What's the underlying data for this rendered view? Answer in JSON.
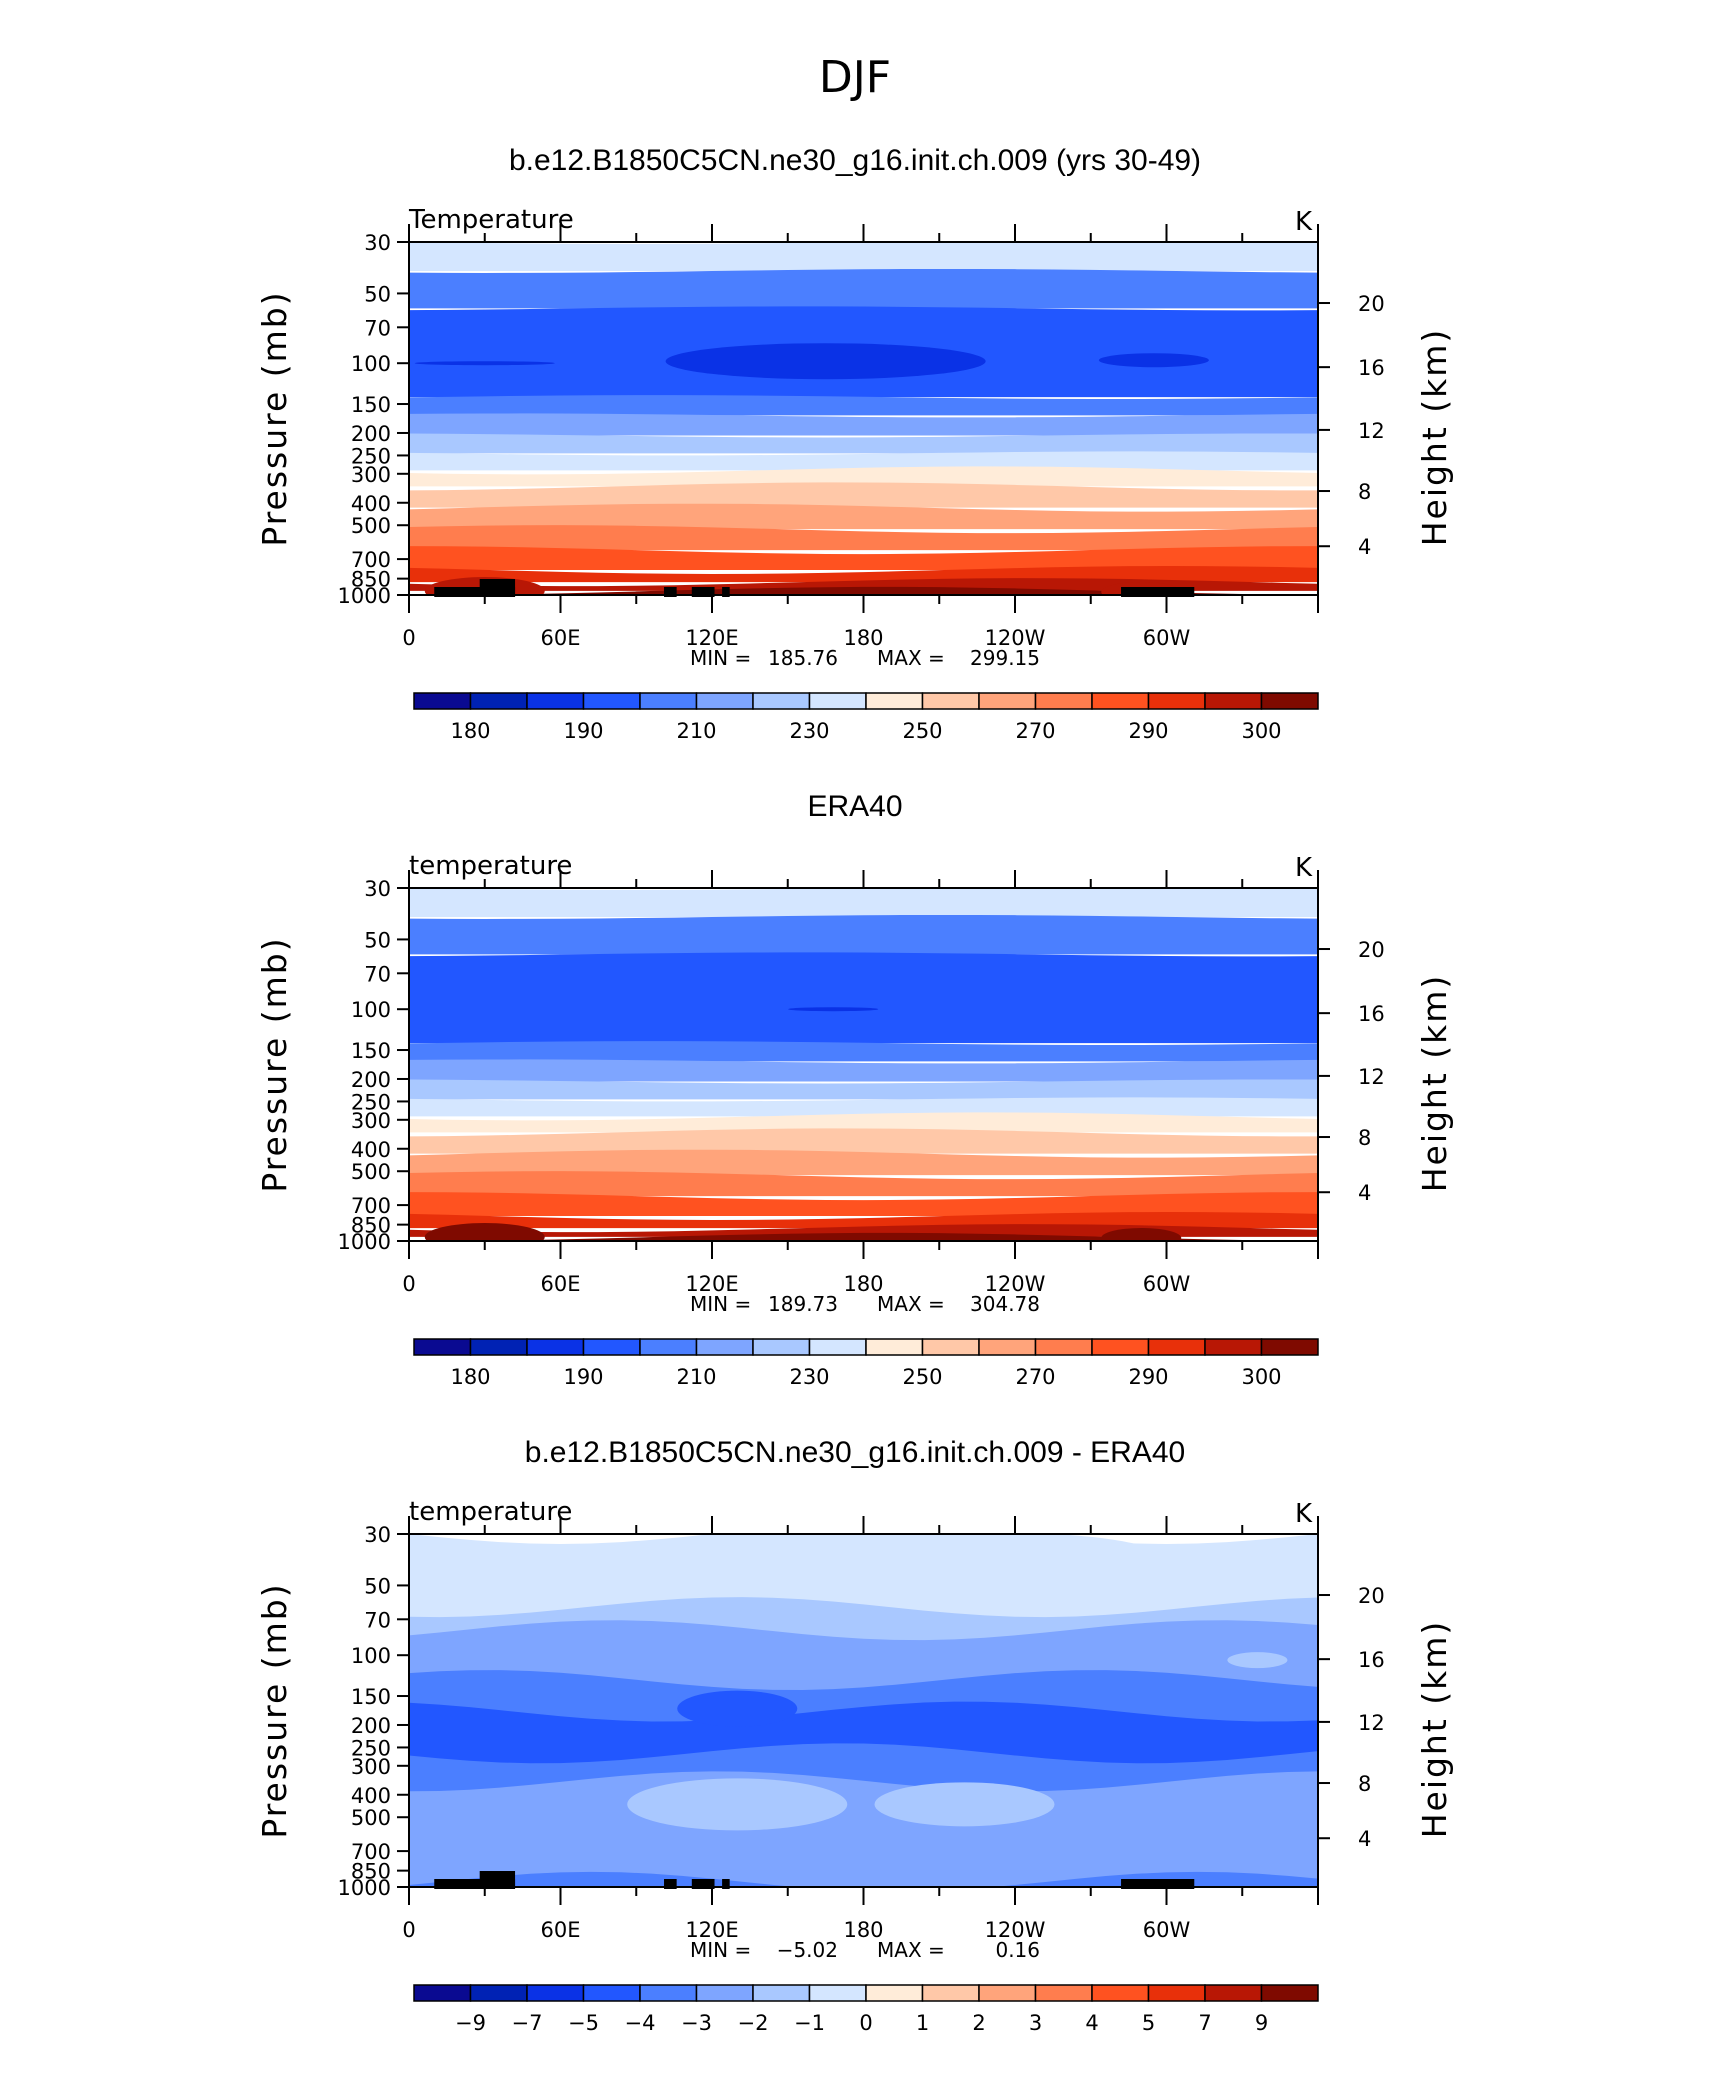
{
  "figure": {
    "title": "DJF"
  },
  "colors": {
    "temperature_scale": [
      "#0a0a91",
      "#0022b4",
      "#0a32e6",
      "#2257ff",
      "#4b7fff",
      "#7ea5ff",
      "#a9c8ff",
      "#d4e6ff",
      "#ffecd9",
      "#ffc8a8",
      "#ffa47b",
      "#ff7d4e",
      "#ff5220",
      "#e8300a",
      "#b81705",
      "#7f0a00"
    ],
    "difference_scale": [
      "#0a0a91",
      "#0022b4",
      "#0a32e6",
      "#2257ff",
      "#4b7fff",
      "#7ea5ff",
      "#a9c8ff",
      "#d4e6ff",
      "#ffecd9",
      "#ffc8a8",
      "#ffa47b",
      "#ff7d4e",
      "#ff5220",
      "#e8300a",
      "#b81705",
      "#7f0a00"
    ]
  },
  "chart_data": [
    {
      "type": "heatmap",
      "title": "b.e12.B1850C5CN.ne30_g16.init.ch.009 (yrs 30-49)",
      "left_string": "Temperature",
      "units": "K",
      "ylabel": "Pressure (mb)",
      "ylabel_right": "Height (km)",
      "y_scale": "log",
      "ylim": [
        1000,
        30
      ],
      "y_ticks": [
        30,
        50,
        70,
        100,
        150,
        200,
        250,
        300,
        400,
        500,
        700,
        850,
        1000
      ],
      "y_right_ticks": [
        4,
        8,
        12,
        16,
        20
      ],
      "x_ticks": [
        "0",
        "60E",
        "120E",
        "180",
        "120W",
        "60W"
      ],
      "xlim": [
        0,
        360
      ],
      "stats": {
        "min_label": "MIN =",
        "min": "185.76",
        "max_label": "MAX =",
        "max": "299.15"
      },
      "levels": [
        180,
        190,
        210,
        230,
        250,
        270,
        290,
        300
      ],
      "colorbar_labels": [
        "180",
        "190",
        "210",
        "230",
        "250",
        "270",
        "290",
        "300"
      ],
      "bands": [
        {
          "p": 30,
          "T": 213
        },
        {
          "p": 50,
          "T": 206
        },
        {
          "p": 70,
          "T": 201
        },
        {
          "p": 100,
          "T": 198
        },
        {
          "p": 150,
          "T": 203
        },
        {
          "p": 200,
          "T": 213
        },
        {
          "p": 250,
          "T": 222
        },
        {
          "p": 300,
          "T": 232
        },
        {
          "p": 400,
          "T": 250
        },
        {
          "p": 500,
          "T": 261
        },
        {
          "p": 700,
          "T": 276
        },
        {
          "p": 850,
          "T": 284
        },
        {
          "p": 1000,
          "T": 291
        }
      ],
      "cold_core": {
        "label_level": 100,
        "value": 195
      }
    },
    {
      "type": "heatmap",
      "title": "ERA40",
      "left_string": "temperature",
      "units": "K",
      "ylabel": "Pressure (mb)",
      "ylabel_right": "Height (km)",
      "y_scale": "log",
      "ylim": [
        1000,
        30
      ],
      "y_ticks": [
        30,
        50,
        70,
        100,
        150,
        200,
        250,
        300,
        400,
        500,
        700,
        850,
        1000
      ],
      "y_right_ticks": [
        4,
        8,
        12,
        16,
        20
      ],
      "x_ticks": [
        "0",
        "60E",
        "120E",
        "180",
        "120W",
        "60W"
      ],
      "xlim": [
        0,
        360
      ],
      "stats": {
        "min_label": "MIN =",
        "min": "189.73",
        "max_label": "MAX =",
        "max": "304.78"
      },
      "levels": [
        180,
        190,
        210,
        230,
        250,
        270,
        290,
        300
      ],
      "colorbar_labels": [
        "180",
        "190",
        "210",
        "230",
        "250",
        "270",
        "290",
        "300"
      ]
    },
    {
      "type": "heatmap",
      "title": "b.e12.B1850C5CN.ne30_g16.init.ch.009 - ERA40",
      "left_string": "temperature",
      "units": "K",
      "ylabel": "Pressure (mb)",
      "ylabel_right": "Height (km)",
      "y_scale": "log",
      "ylim": [
        1000,
        30
      ],
      "y_ticks": [
        30,
        50,
        70,
        100,
        150,
        200,
        250,
        300,
        400,
        500,
        700,
        850,
        1000
      ],
      "y_right_ticks": [
        4,
        8,
        12,
        16,
        20
      ],
      "x_ticks": [
        "0",
        "60E",
        "120E",
        "180",
        "120W",
        "60W"
      ],
      "xlim": [
        0,
        360
      ],
      "stats": {
        "min_label": "MIN =",
        "min": "−5.02",
        "max_label": "MAX =",
        "max": "0.16"
      },
      "levels": [
        -9,
        -7,
        -5,
        -4,
        -3,
        -2,
        -1,
        0,
        1,
        2,
        3,
        4,
        5,
        7,
        9
      ],
      "colorbar_labels": [
        "−9",
        "−7",
        "−5",
        "−4",
        "−3",
        "−2",
        "−1",
        "0",
        "1",
        "2",
        "3",
        "4",
        "5",
        "7",
        "9"
      ]
    }
  ]
}
